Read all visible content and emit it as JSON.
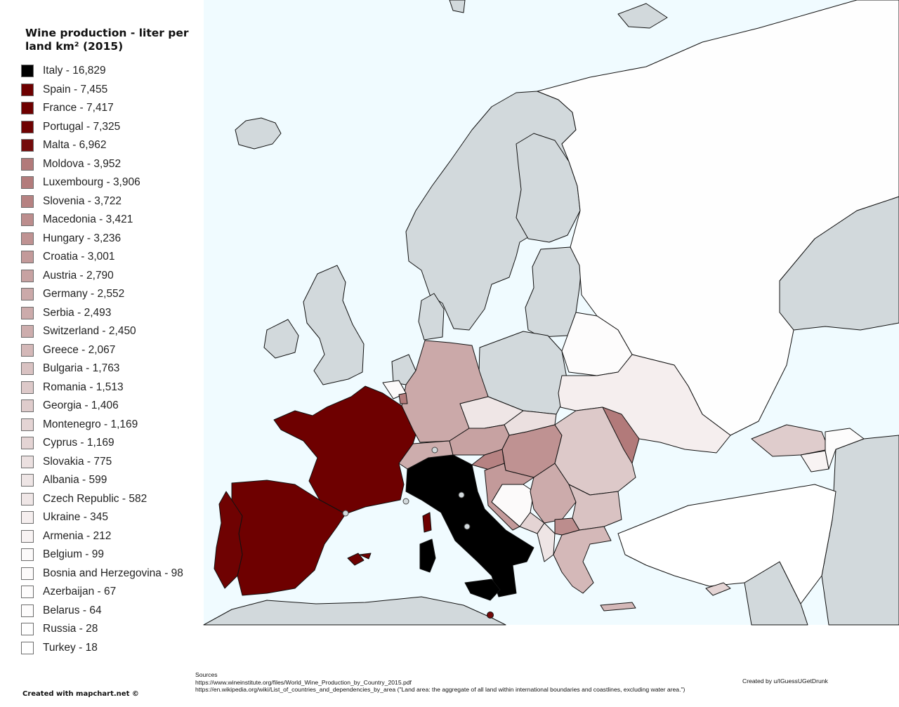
{
  "title": "Wine production - liter per land km² (2015)",
  "legend": [
    {
      "label": "Italy - 16,829",
      "color": "#000000"
    },
    {
      "label": "Spain - 7,455",
      "color": "#6e0000"
    },
    {
      "label": "France - 7,417",
      "color": "#6e0000"
    },
    {
      "label": "Portugal - 7,325",
      "color": "#6f0202"
    },
    {
      "label": "Malta - 6,962",
      "color": "#740b0b"
    },
    {
      "label": "Moldova - 3,952",
      "color": "#b27a7a"
    },
    {
      "label": "Luxembourg - 3,906",
      "color": "#b37c7c"
    },
    {
      "label": "Slovenia - 3,722",
      "color": "#b68282"
    },
    {
      "label": "Macedonia - 3,421",
      "color": "#bc8d8d"
    },
    {
      "label": "Hungary - 3,236",
      "color": "#bf9292"
    },
    {
      "label": "Croatia - 3,001",
      "color": "#c39a9a"
    },
    {
      "label": "Austria - 2,790",
      "color": "#c7a2a2"
    },
    {
      "label": "Germany - 2,552",
      "color": "#cba9a9"
    },
    {
      "label": "Serbia - 2,493",
      "color": "#ccabab"
    },
    {
      "label": "Switzerland - 2,450",
      "color": "#cdadad"
    },
    {
      "label": "Greece - 2,067",
      "color": "#d4b8b8"
    },
    {
      "label": "Bulgaria - 1,763",
      "color": "#d9c2c2"
    },
    {
      "label": "Romania - 1,513",
      "color": "#ddc9c9"
    },
    {
      "label": "Georgia - 1,406",
      "color": "#dfcccc"
    },
    {
      "label": "Montenegro - 1,169",
      "color": "#e4d4d4"
    },
    {
      "label": "Cyprus - 1,169",
      "color": "#e4d4d4"
    },
    {
      "label": "Slovakia - 775",
      "color": "#ebe0e0"
    },
    {
      "label": "Albania - 599",
      "color": "#eee5e5"
    },
    {
      "label": "Czech Republic - 582",
      "color": "#efe6e6"
    },
    {
      "label": "Ukraine - 345",
      "color": "#f5eeee"
    },
    {
      "label": "Armenia - 212",
      "color": "#f8f3f3"
    },
    {
      "label": "Belgium - 99",
      "color": "#fcfafa"
    },
    {
      "label": "Bosnia and Herzegovina - 98",
      "color": "#fcfafa"
    },
    {
      "label": "Azerbaijan - 67",
      "color": "#fdfcfc"
    },
    {
      "label": "Belarus - 64",
      "color": "#fdfcfc"
    },
    {
      "label": "Russia - 28",
      "color": "#fefefe"
    },
    {
      "label": "Turkey - 18",
      "color": "#ffffff"
    }
  ],
  "colors": {
    "sea": "#f0fbff",
    "no_data": "#d2d9dc",
    "border": "#111111"
  },
  "credits": {
    "tool": "Created with mapchart.net ©",
    "author": "Created by u/IGuessUGetDrunk"
  },
  "sources": {
    "heading": "Sources",
    "line1": "https://www.wineinstitute.org/files/World_Wine_Production_by_Country_2015.pdf",
    "line2": "https://en.wikipedia.org/wiki/List_of_countries_and_dependencies_by_area (\"Land area: the aggregate of all land within international boundaries and coastlines, excluding water area.\")"
  }
}
